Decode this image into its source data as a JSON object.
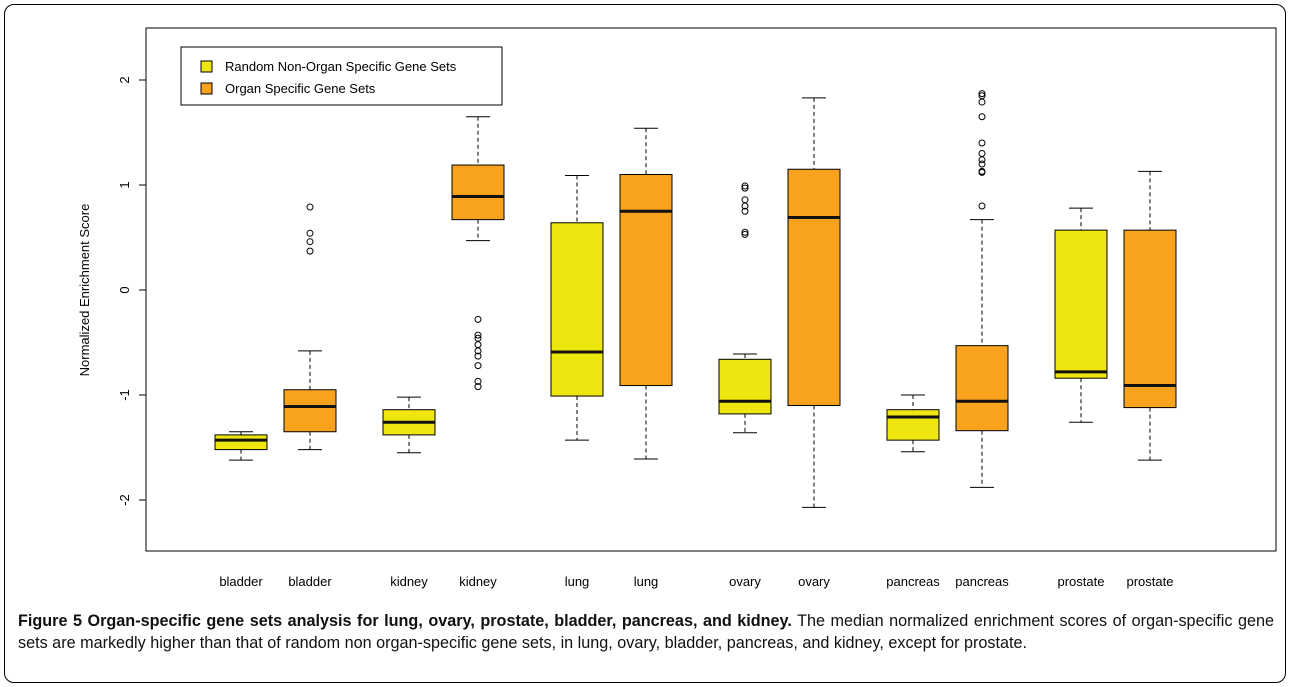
{
  "chart_data": {
    "type": "box",
    "ylabel": "Normalized Enrichment Score",
    "xlabel": "",
    "ylim": [
      -2.5,
      2.5
    ],
    "yticks": [
      -2,
      -1,
      0,
      1,
      2
    ],
    "ytick_labels": [
      "-2",
      "-1",
      "0",
      "1",
      "2"
    ],
    "grid": false,
    "legend_position": "top-left",
    "legend": [
      {
        "label": "Random Non-Organ Specific Gene Sets",
        "color": "#f0e60f"
      },
      {
        "label": "Organ Specific Gene Sets",
        "color": "#f8a21e"
      }
    ],
    "boxes": [
      {
        "category": "bladder",
        "group": 0,
        "whisker_low": -1.62,
        "q1": -1.52,
        "median": -1.43,
        "q3": -1.38,
        "whisker_high": -1.35,
        "outliers": []
      },
      {
        "category": "bladder",
        "group": 1,
        "whisker_low": -1.52,
        "q1": -1.35,
        "median": -1.11,
        "q3": -0.95,
        "whisker_high": -0.58,
        "outliers": [
          0.79,
          0.54,
          0.46,
          0.37
        ]
      },
      {
        "category": "kidney",
        "group": 0,
        "whisker_low": -1.55,
        "q1": -1.38,
        "median": -1.26,
        "q3": -1.14,
        "whisker_high": -1.02,
        "outliers": []
      },
      {
        "category": "kidney",
        "group": 1,
        "whisker_low": 0.47,
        "q1": 0.67,
        "median": 0.89,
        "q3": 1.19,
        "whisker_high": 1.65,
        "outliers": [
          -0.28,
          -0.43,
          -0.46,
          -0.52,
          -0.58,
          -0.63,
          -0.72,
          -0.87,
          -0.92
        ]
      },
      {
        "category": "lung",
        "group": 0,
        "whisker_low": -1.43,
        "q1": -1.01,
        "median": -0.59,
        "q3": 0.64,
        "whisker_high": 1.09,
        "outliers": []
      },
      {
        "category": "lung",
        "group": 1,
        "whisker_low": -1.61,
        "q1": -0.91,
        "median": 0.75,
        "q3": 1.1,
        "whisker_high": 1.54,
        "outliers": []
      },
      {
        "category": "ovary",
        "group": 0,
        "whisker_low": -1.36,
        "q1": -1.18,
        "median": -1.06,
        "q3": -0.66,
        "whisker_high": -0.61,
        "outliers": [
          0.99,
          0.97,
          0.86,
          0.8,
          0.75,
          0.55,
          0.53
        ]
      },
      {
        "category": "ovary",
        "group": 1,
        "whisker_low": -2.07,
        "q1": -1.1,
        "median": 0.69,
        "q3": 1.15,
        "whisker_high": 1.83,
        "outliers": []
      },
      {
        "category": "pancreas",
        "group": 0,
        "whisker_low": -1.54,
        "q1": -1.43,
        "median": -1.21,
        "q3": -1.14,
        "whisker_high": -1.0,
        "outliers": []
      },
      {
        "category": "pancreas",
        "group": 1,
        "whisker_low": -1.88,
        "q1": -1.34,
        "median": -1.06,
        "q3": -0.53,
        "whisker_high": 0.67,
        "outliers": [
          1.87,
          1.85,
          1.79,
          1.65,
          1.4,
          1.3,
          1.24,
          1.2,
          1.13,
          1.12,
          0.8
        ]
      },
      {
        "category": "prostate",
        "group": 0,
        "whisker_low": -1.26,
        "q1": -0.84,
        "median": -0.78,
        "q3": 0.57,
        "whisker_high": 0.78,
        "outliers": []
      },
      {
        "category": "prostate",
        "group": 1,
        "whisker_low": -1.62,
        "q1": -1.12,
        "median": -0.91,
        "q3": 0.57,
        "whisker_high": 1.13,
        "outliers": []
      }
    ]
  },
  "caption": {
    "bold": "Figure 5 Organ-specific gene sets analysis for lung, ovary, prostate, bladder, pancreas, and kidney.",
    "text": " The median normalized enrichment scores of organ-specific gene sets are markedly higher than that of random non organ-specific gene sets, in lung, ovary, bladder, pancreas, and kidney, except for prostate."
  }
}
